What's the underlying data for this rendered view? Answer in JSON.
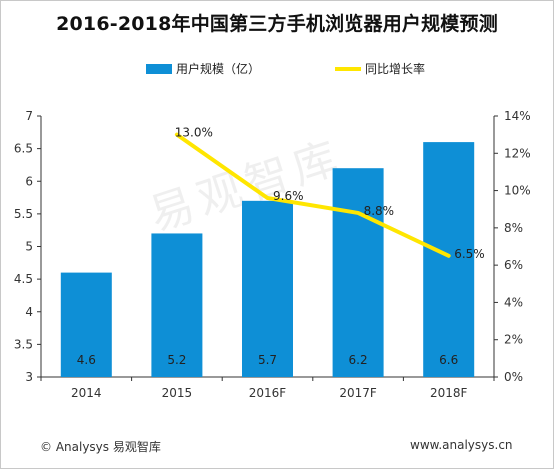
{
  "chart_data": {
    "type": "bar",
    "title": "2016-2018年中国第三方手机浏览器用户规模预测",
    "categories": [
      "2014",
      "2015",
      "2016F",
      "2017F",
      "2018F"
    ],
    "series": [
      {
        "name": "用户规模（亿）",
        "type": "bar",
        "axis": "left",
        "values": [
          4.6,
          5.2,
          5.7,
          6.2,
          6.6
        ],
        "labels": [
          "4.6",
          "5.2",
          "5.7",
          "6.2",
          "6.6"
        ],
        "color": "#0e8fd6"
      },
      {
        "name": "同比增长率",
        "type": "line",
        "axis": "right",
        "x": [
          "2015",
          "2016F",
          "2017F",
          "2018F"
        ],
        "values": [
          13.0,
          9.6,
          8.8,
          6.5
        ],
        "labels": [
          "13.0%",
          "9.6%",
          "8.8%",
          "6.5%"
        ],
        "color": "#ffe600"
      }
    ],
    "left_axis": {
      "ylim": [
        3,
        7
      ],
      "ticks": [
        "3",
        "3.5",
        "4",
        "4.5",
        "5",
        "5.5",
        "6",
        "6.5",
        "7"
      ]
    },
    "right_axis": {
      "ylim": [
        0,
        14
      ],
      "ticks": [
        "0%",
        "2%",
        "4%",
        "6%",
        "8%",
        "10%",
        "12%",
        "14%"
      ]
    },
    "legend_position": "top",
    "grid": false
  },
  "footer": {
    "source": "© Analysys 易观智库",
    "url": "www.analysys.cn"
  },
  "watermark": "易观智库"
}
